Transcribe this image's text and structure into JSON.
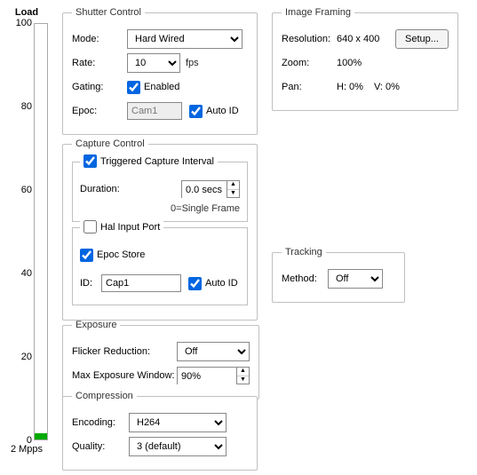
{
  "load": {
    "title": "Load",
    "ticks": [
      100,
      80,
      60,
      40,
      20,
      0
    ],
    "fill_pct": 1.5,
    "fill_color": "#00aa00",
    "rate_label": "2 Mpps"
  },
  "shutter": {
    "title": "Shutter Control",
    "mode_label": "Mode:",
    "mode_value": "Hard Wired",
    "rate_label": "Rate:",
    "rate_value": "10",
    "rate_unit": "fps",
    "gating_label": "Gating:",
    "gating_checked": true,
    "gating_text": "Enabled",
    "epoc_label": "Epoc:",
    "epoc_value": "Cam1",
    "autoid_checked": true,
    "autoid_text": "Auto ID"
  },
  "framing": {
    "title": "Image Framing",
    "res_label": "Resolution:",
    "res_value": "640 x 400",
    "setup_label": "Setup...",
    "zoom_label": "Zoom:",
    "zoom_value": "100%",
    "pan_label": "Pan:",
    "pan_h": "H: 0%",
    "pan_v": "V: 0%"
  },
  "capture": {
    "title": "Capture Control",
    "trig_checked": true,
    "trig_text": "Triggered Capture Interval",
    "duration_label": "Duration:",
    "duration_value": "0.0 secs",
    "duration_note": "0=Single Frame",
    "hal_checked": false,
    "hal_text": "Hal Input Port",
    "epoc_checked": true,
    "epoc_text": "Epoc Store",
    "id_label": "ID:",
    "id_value": "Cap1",
    "autoid_checked": true,
    "autoid_text": "Auto ID"
  },
  "tracking": {
    "title": "Tracking",
    "method_label": "Method:",
    "method_value": "Off"
  },
  "exposure": {
    "title": "Exposure",
    "flicker_label": "Flicker Reduction:",
    "flicker_value": "Off",
    "max_label": "Max Exposure Window:",
    "max_value": "90%"
  },
  "compression": {
    "title": "Compression",
    "encoding_label": "Encoding:",
    "encoding_value": "H264",
    "quality_label": "Quality:",
    "quality_value": "3  (default)"
  }
}
